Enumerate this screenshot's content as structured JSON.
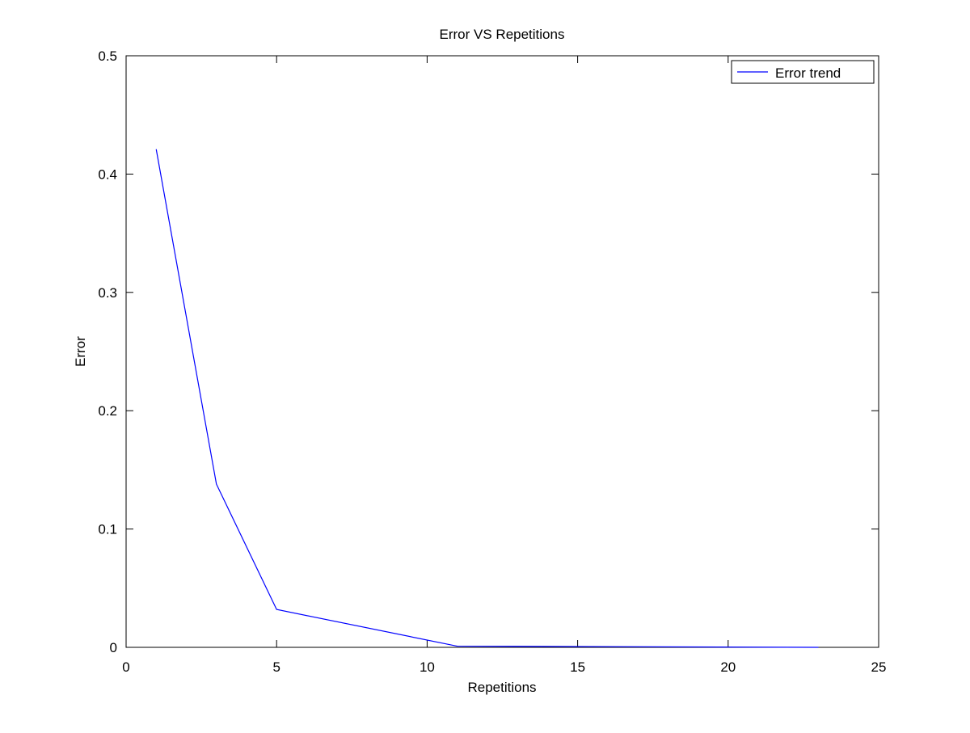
{
  "chart_data": {
    "type": "line",
    "title": "Error VS Repetitions",
    "xlabel": "Repetitions",
    "ylabel": "Error",
    "xlim": [
      0,
      25
    ],
    "ylim": [
      0,
      0.5
    ],
    "xticks": [
      0,
      5,
      10,
      15,
      20,
      25
    ],
    "yticks": [
      0,
      0.1,
      0.2,
      0.3,
      0.4,
      0.5
    ],
    "xtick_labels": [
      "0",
      "5",
      "10",
      "15",
      "20",
      "25"
    ],
    "ytick_labels": [
      "0",
      "0.1",
      "0.2",
      "0.3",
      "0.4",
      "0.5"
    ],
    "grid": false,
    "legend_position": "top-right",
    "series": [
      {
        "name": "Error trend",
        "color": "#0000ff",
        "x": [
          1,
          3,
          5,
          11,
          23
        ],
        "y": [
          0.421,
          0.138,
          0.032,
          0.001,
          0.0
        ]
      }
    ]
  }
}
